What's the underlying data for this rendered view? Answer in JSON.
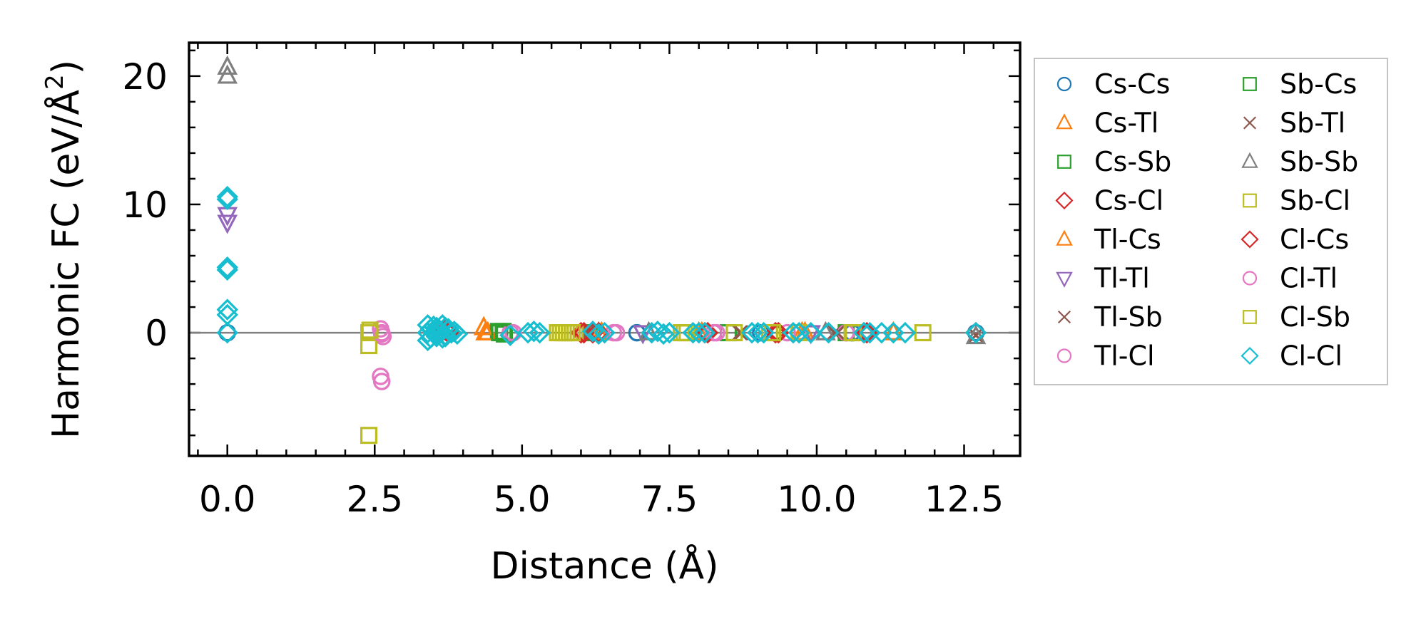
{
  "chart_data": {
    "type": "scatter",
    "title": "",
    "xlabel": "Distance (Å)",
    "ylabel": "Harmonic FC (eV/Å",
    "ylabel_superscript": "2",
    "ylabel_close": ")",
    "xlim": [
      -0.65,
      13.45
    ],
    "ylim": [
      -9.6,
      22.6
    ],
    "xticks": [
      0.0,
      2.5,
      5.0,
      7.5,
      10.0,
      12.5
    ],
    "xtick_labels": [
      "0.0",
      "2.5",
      "5.0",
      "7.5",
      "10.0",
      "12.5"
    ],
    "yticks": [
      0,
      10,
      20
    ],
    "ytick_labels": [
      "0",
      "10",
      "20"
    ],
    "zero_line": 0,
    "legend_position": "outside-right",
    "series": [
      {
        "name": "Cs-Cs",
        "marker": "circle",
        "color": "#1f77b4",
        "x": [
          0.0,
          6.95,
          9.05,
          10.6,
          12.7
        ],
        "y": [
          0.0,
          0.0,
          0.0,
          0.0,
          0.0
        ]
      },
      {
        "name": "Cs-Tl",
        "marker": "triangle-up",
        "color": "#ff7f0e",
        "x": [
          4.35,
          4.42,
          6.3,
          8.05,
          9.75,
          11.3
        ],
        "y": [
          0.4,
          0.0,
          0.0,
          0.0,
          0.0,
          0.0
        ]
      },
      {
        "name": "Cs-Sb",
        "marker": "square",
        "color": "#2ca02c",
        "x": [
          4.6,
          4.7,
          6.15,
          8.5,
          10.5
        ],
        "y": [
          0.1,
          -0.1,
          0.0,
          0.0,
          0.0
        ]
      },
      {
        "name": "Cs-Cl",
        "marker": "diamond",
        "color": "#d62728",
        "x": [
          3.7,
          3.8,
          6.0,
          6.2,
          8.1,
          9.3,
          10.8,
          12.7
        ],
        "y": [
          0.2,
          0.0,
          0.0,
          0.0,
          0.0,
          0.0,
          0.0,
          0.0
        ]
      },
      {
        "name": "Tl-Cs",
        "marker": "triangle-up",
        "color": "#ff7f0e",
        "x": [
          4.38,
          6.35,
          8.0,
          9.8
        ],
        "y": [
          0.0,
          0.0,
          0.0,
          0.0
        ]
      },
      {
        "name": "Tl-Tl",
        "marker": "triangle-down",
        "color": "#9467bd",
        "x": [
          0.0,
          0.0,
          7.05,
          9.9
        ],
        "y": [
          9.2,
          8.6,
          0.0,
          0.0
        ]
      },
      {
        "name": "Tl-Sb",
        "marker": "x",
        "color": "#8c564b",
        "x": [
          6.1,
          8.7,
          10.3
        ],
        "y": [
          0.0,
          0.0,
          0.0
        ]
      },
      {
        "name": "Tl-Cl",
        "marker": "circle",
        "color": "#e377c2",
        "x": [
          2.6,
          2.62,
          2.64,
          2.6,
          2.62,
          4.8,
          6.55,
          8.25,
          9.5,
          10.5
        ],
        "y": [
          0.3,
          0.0,
          -0.3,
          -3.4,
          -3.8,
          0.0,
          0.0,
          0.0,
          0.0,
          0.0
        ]
      },
      {
        "name": "Sb-Cs",
        "marker": "square",
        "color": "#2ca02c",
        "x": [
          4.62,
          4.68
        ],
        "y": [
          0.0,
          0.1
        ]
      },
      {
        "name": "Sb-Tl",
        "marker": "x",
        "color": "#8c564b",
        "x": [
          6.12,
          8.72,
          10.35,
          12.7
        ],
        "y": [
          0.0,
          0.0,
          0.0,
          -0.2
        ]
      },
      {
        "name": "Sb-Sb",
        "marker": "triangle-up",
        "color": "#7f7f7f",
        "x": [
          0.0,
          0.0,
          7.15,
          10.15,
          12.7
        ],
        "y": [
          20.7,
          20.0,
          0.0,
          0.0,
          -0.3
        ]
      },
      {
        "name": "Sb-Cl",
        "marker": "square",
        "color": "#bcbd22",
        "x": [
          2.4,
          2.4,
          2.4,
          5.6,
          5.7,
          5.8,
          5.9,
          7.7,
          7.8,
          8.6,
          9.2,
          9.7,
          10.6,
          11.8
        ],
        "y": [
          0.0,
          -1.0,
          -8.0,
          0.0,
          0.0,
          0.0,
          0.0,
          0.0,
          0.0,
          0.0,
          0.0,
          0.0,
          0.0,
          0.0
        ]
      },
      {
        "name": "Cl-Cs",
        "marker": "diamond",
        "color": "#d62728",
        "x": [
          3.75,
          6.05,
          6.3,
          8.15,
          9.35,
          10.85
        ],
        "y": [
          0.0,
          0.0,
          0.0,
          0.0,
          0.0,
          0.0
        ]
      },
      {
        "name": "Cl-Tl",
        "marker": "circle",
        "color": "#e377c2",
        "x": [
          2.62,
          4.85,
          6.6,
          8.3
        ],
        "y": [
          -0.1,
          0.0,
          0.0,
          0.0
        ]
      },
      {
        "name": "Cl-Sb",
        "marker": "square",
        "color": "#bcbd22",
        "x": [
          2.42,
          5.65,
          5.75,
          5.85,
          7.75,
          9.25,
          10.62
        ],
        "y": [
          0.2,
          0.0,
          0.0,
          0.0,
          0.0,
          0.0,
          0.0
        ]
      },
      {
        "name": "Cl-Cl",
        "marker": "diamond",
        "color": "#17becf",
        "x": [
          0.0,
          0.0,
          0.0,
          0.0,
          0.0,
          0.0,
          0.0,
          3.4,
          3.4,
          3.45,
          3.5,
          3.55,
          3.6,
          3.65,
          3.7,
          3.75,
          3.8,
          3.85,
          3.9,
          3.45,
          3.55,
          3.65,
          3.75,
          3.5,
          3.6,
          3.7,
          3.4,
          3.55,
          3.7,
          4.8,
          5.1,
          5.2,
          5.3,
          6.2,
          6.3,
          6.4,
          7.2,
          7.3,
          7.4,
          7.5,
          7.9,
          8.0,
          8.1,
          8.9,
          9.0,
          9.1,
          9.6,
          9.7,
          9.9,
          10.2,
          10.8,
          10.9,
          11.1,
          11.3,
          11.5,
          12.7
        ],
        "y": [
          10.6,
          10.4,
          5.1,
          4.9,
          1.8,
          1.4,
          0.0,
          0.6,
          -0.6,
          0.3,
          0.5,
          -0.3,
          0.2,
          0.6,
          -0.2,
          0.3,
          0.0,
          0.1,
          -0.1,
          -0.4,
          0.4,
          -0.4,
          0.2,
          0.0,
          0.0,
          0.4,
          0.0,
          -0.1,
          -0.3,
          -0.2,
          0.0,
          0.1,
          0.0,
          0.1,
          -0.1,
          0.0,
          0.0,
          0.1,
          -0.1,
          0.0,
          0.0,
          0.0,
          0.0,
          0.0,
          0.0,
          0.0,
          0.0,
          0.0,
          0.0,
          0.0,
          0.0,
          0.0,
          0.0,
          0.0,
          0.0,
          0.0
        ]
      }
    ]
  }
}
